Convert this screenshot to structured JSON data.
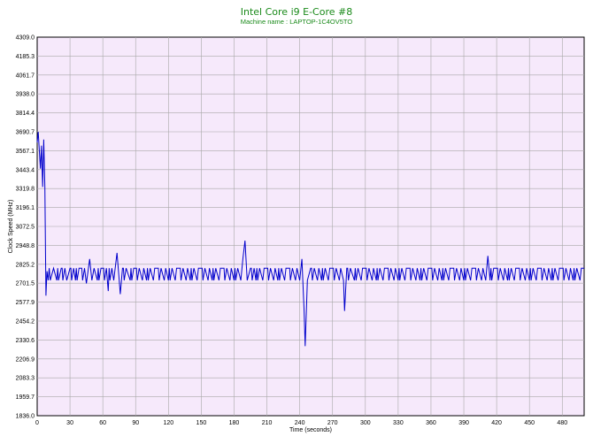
{
  "colors": {
    "plot_bg": "#f6e9fb",
    "grid": "#a8a8a8",
    "line": "#0000cc",
    "title": "#1a8a1a"
  },
  "chart_data": {
    "type": "line",
    "title": "Intel Core i9 E-Core #8",
    "subtitle": "Machine name : LAPTOP-1C4OV5TO",
    "xlabel": "Time (seconds)",
    "ylabel": "Clock Speed (MHz)",
    "xlim": [
      0,
      500
    ],
    "ylim": [
      1836.0,
      4309.0
    ],
    "xticks": [
      "0",
      "30",
      "60",
      "90",
      "120",
      "150",
      "180",
      "210",
      "240",
      "270",
      "300",
      "330",
      "360",
      "390",
      "420",
      "450",
      "480"
    ],
    "yticks": [
      "1836.0",
      "1959.7",
      "2083.3",
      "2206.9",
      "2330.6",
      "2454.2",
      "2577.9",
      "2701.5",
      "2825.2",
      "2948.8",
      "3072.5",
      "3196.1",
      "3319.8",
      "3443.4",
      "3567.1",
      "3690.7",
      "3814.4",
      "3938.0",
      "4061.7",
      "4185.3",
      "4309.0"
    ],
    "grid": true,
    "series": [
      {
        "baseline_low": 2720,
        "baseline_high": 2800,
        "x": [
          0,
          1,
          2,
          3,
          4,
          5,
          6,
          7,
          8,
          9,
          10,
          11,
          12,
          15,
          18,
          22,
          27,
          30,
          35,
          40,
          45,
          48,
          50,
          52,
          55,
          60,
          65,
          70,
          73,
          75,
          76,
          78,
          85,
          90,
          100,
          110,
          120,
          130,
          140,
          150,
          160,
          170,
          180,
          188,
          190,
          192,
          195,
          200,
          210,
          220,
          230,
          240,
          242,
          244,
          245,
          247,
          250,
          260,
          270,
          280,
          281,
          283,
          290,
          300,
          310,
          320,
          330,
          340,
          350,
          360,
          370,
          380,
          390,
          400,
          410,
          412,
          414,
          420,
          430,
          440,
          450,
          460,
          470,
          480,
          490,
          500
        ],
        "values": [
          3620,
          3690,
          3560,
          3450,
          3600,
          3330,
          3640,
          3330,
          2620,
          2780,
          2720,
          2800,
          2720,
          2800,
          2720,
          2800,
          2720,
          2800,
          2720,
          2800,
          2700,
          2860,
          2720,
          2800,
          2720,
          2800,
          2650,
          2720,
          2900,
          2720,
          2630,
          2800,
          2720,
          2800,
          2720,
          2800,
          2720,
          2800,
          2720,
          2800,
          2720,
          2800,
          2720,
          2860,
          2980,
          2720,
          2800,
          2720,
          2800,
          2720,
          2800,
          2720,
          2860,
          2520,
          2290,
          2720,
          2800,
          2720,
          2800,
          2720,
          2520,
          2800,
          2720,
          2800,
          2720,
          2800,
          2720,
          2800,
          2720,
          2800,
          2720,
          2800,
          2720,
          2800,
          2720,
          2880,
          2720,
          2800,
          2720,
          2800,
          2720,
          2800,
          2720,
          2800,
          2720,
          2800
        ]
      }
    ]
  }
}
